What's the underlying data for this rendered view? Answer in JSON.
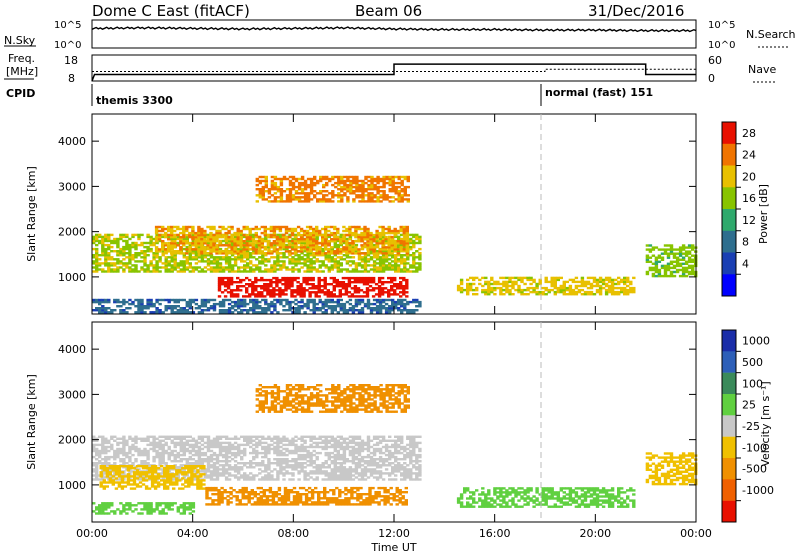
{
  "header": {
    "title": "Dome C East (fitACF)",
    "beam": "Beam 06",
    "date": "31/Dec/2016"
  },
  "nsky_panel": {
    "left_label": "N.Sky",
    "right_label": "N.Search",
    "left_ticks": [
      "10^5",
      "10^0"
    ],
    "right_ticks": [
      "10^5",
      "10^0"
    ]
  },
  "freq_panel": {
    "left_label_1": "Freq.",
    "left_label_2": "[MHz]",
    "right_label": "Nave",
    "left_ticks": [
      "18",
      "8"
    ],
    "right_ticks": [
      "60",
      "0"
    ]
  },
  "cpid": {
    "label": "CPID",
    "segments": [
      {
        "text": "themis 3300",
        "start_hour": 0
      },
      {
        "text": "normal (fast) 151",
        "start_hour": 18
      }
    ]
  },
  "x_axis": {
    "label": "Time UT",
    "tick_labels": [
      "00:00",
      "04:00",
      "08:00",
      "12:00",
      "16:00",
      "20:00",
      "00:00"
    ]
  },
  "power_panel": {
    "ylabel": "Slant Range [km]",
    "y_tick_labels": [
      "1000",
      "2000",
      "3000",
      "4000"
    ],
    "colorbar_label": "Power [dB]",
    "colorbar_ticks": [
      "28",
      "24",
      "20",
      "16",
      "12",
      "8",
      "4"
    ]
  },
  "velocity_panel": {
    "ylabel": "Slant Range [km]",
    "y_tick_labels": [
      "1000",
      "2000",
      "3000",
      "4000"
    ],
    "colorbar_label": "Velocity [m s⁻¹]",
    "colorbar_ticks": [
      "1000",
      "500",
      "100",
      "25",
      "-25",
      "-100",
      "-500",
      "-1000"
    ]
  },
  "chart_data": [
    {
      "type": "line",
      "title": "Dome C East (fitACF)",
      "panel": "N.Sky / N.Search",
      "x": [
        0,
        2,
        4,
        6,
        8,
        10,
        12,
        14,
        16,
        18,
        20,
        22,
        24
      ],
      "y_log10": [
        3.5,
        3.6,
        3.5,
        3.4,
        3.5,
        3.6,
        3.4,
        3.3,
        3.3,
        3.2,
        3.2,
        3.1,
        3.1
      ],
      "ylim": [
        "10^0",
        "10^5"
      ]
    },
    {
      "type": "line",
      "panel": "Freq. / Nave",
      "series": [
        {
          "name": "Freq.",
          "x": [
            0,
            0.1,
            12,
            12,
            22,
            22,
            24
          ],
          "values": [
            8,
            10.5,
            10.5,
            14.5,
            14.5,
            10.5,
            10.5
          ]
        },
        {
          "name": "Nave",
          "x": [
            0,
            18,
            18,
            24
          ],
          "values": [
            22,
            22,
            27,
            27
          ]
        }
      ],
      "xlim": [
        0,
        24
      ],
      "ylim_freq": [
        8,
        18
      ],
      "ylim_nave": [
        0,
        60
      ]
    },
    {
      "type": "heatmap",
      "panel": "Power [dB]",
      "xlabel": "Time UT",
      "ylabel": "Slant Range [km]",
      "xlim": [
        0,
        24
      ],
      "ylim": [
        180,
        4600
      ],
      "colorscale": [
        "#0000ff",
        "#1a3fb3",
        "#2e6e8e",
        "#2fa96c",
        "#88c400",
        "#e8c000",
        "#f07400",
        "#e81000"
      ],
      "range_steps": [
        -4,
        0,
        4,
        8,
        12,
        16,
        20,
        24,
        28
      ],
      "regions": [
        {
          "t0": 0.0,
          "t1": 13.0,
          "r0": 1100,
          "r1": 1950,
          "value": 14
        },
        {
          "t0": 2.5,
          "t1": 12.5,
          "r0": 1500,
          "r1": 2100,
          "value": 18
        },
        {
          "t0": 5.0,
          "t1": 12.5,
          "r0": 550,
          "r1": 1000,
          "value": 25
        },
        {
          "t0": 6.5,
          "t1": 12.5,
          "r0": 2650,
          "r1": 3200,
          "value": 20
        },
        {
          "t0": 0.0,
          "t1": 13.0,
          "r0": 200,
          "r1": 500,
          "value": 4
        },
        {
          "t0": 14.5,
          "t1": 21.5,
          "r0": 600,
          "r1": 1000,
          "value": 16
        },
        {
          "t0": 22.0,
          "t1": 24.0,
          "r0": 1000,
          "r1": 1700,
          "value": 12
        }
      ]
    },
    {
      "type": "heatmap",
      "panel": "Velocity [m s⁻¹]",
      "xlabel": "Time UT",
      "ylabel": "Slant Range [km]",
      "xlim": [
        0,
        24
      ],
      "ylim": [
        180,
        4600
      ],
      "colorscale": [
        "#e81000",
        "#f06000",
        "#f09000",
        "#f0c000",
        "#c8c8c8",
        "#60d040",
        "#3a8a5a",
        "#2d5fb8",
        "#1a2da8"
      ],
      "range_steps": [
        -2000,
        -1000,
        -500,
        -100,
        -25,
        25,
        100,
        500,
        1000,
        2000
      ],
      "regions": [
        {
          "t0": 0.0,
          "t1": 13.0,
          "r0": 1100,
          "r1": 2050,
          "value": 0
        },
        {
          "t0": 0.3,
          "t1": 4.5,
          "r0": 900,
          "r1": 1400,
          "value": -60
        },
        {
          "t0": 4.5,
          "t1": 12.5,
          "r0": 550,
          "r1": 950,
          "value": -200
        },
        {
          "t0": 6.5,
          "t1": 12.5,
          "r0": 2600,
          "r1": 3200,
          "value": -200
        },
        {
          "t0": 0.0,
          "t1": 4.0,
          "r0": 350,
          "r1": 600,
          "value": 60
        },
        {
          "t0": 14.5,
          "t1": 21.5,
          "r0": 500,
          "r1": 950,
          "value": 60
        },
        {
          "t0": 22.0,
          "t1": 24.0,
          "r0": 1000,
          "r1": 1700,
          "value": -60
        }
      ]
    }
  ]
}
